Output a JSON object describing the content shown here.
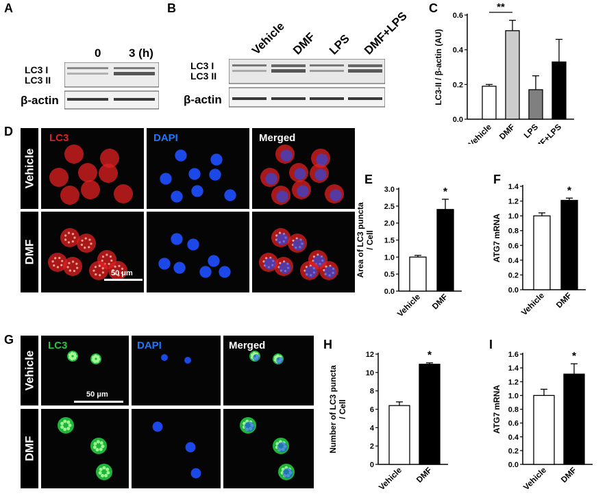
{
  "panels": {
    "A": "A",
    "B": "B",
    "C": "C",
    "D": "D",
    "E": "E",
    "F": "F",
    "G": "G",
    "H": "H",
    "I": "I"
  },
  "blot_a": {
    "lanes": [
      "0",
      "3 (h)"
    ],
    "labels": [
      "LC3 I",
      "LC3 II",
      "β-actin"
    ]
  },
  "blot_b": {
    "lanes": [
      "Vehicle",
      "DMF",
      "LPS",
      "DMF+LPS"
    ],
    "labels": [
      "LC3 I",
      "LC3 II",
      "β-actin"
    ]
  },
  "micro_d": {
    "channels": [
      "LC3",
      "DAPI",
      "Merged"
    ],
    "rows": [
      "Vehicle",
      "DMF"
    ],
    "scale": "50 μm",
    "colors": {
      "lc3": "#e02020",
      "dapi": "#1e50ff"
    }
  },
  "micro_g": {
    "channels": [
      "LC3",
      "DAPI",
      "Merged"
    ],
    "rows": [
      "Vehicle",
      "DMF"
    ],
    "scale": "50 μm",
    "colors": {
      "lc3": "#22c840",
      "dapi": "#1e50ff"
    }
  },
  "chart_data": [
    {
      "panel": "C",
      "type": "bar",
      "categories": [
        "Vehicle",
        "DMF",
        "LPS",
        "DMF+LPS"
      ],
      "values": [
        0.19,
        0.51,
        0.17,
        0.33
      ],
      "errors": [
        0.01,
        0.06,
        0.08,
        0.13
      ],
      "fills": [
        "#ffffff",
        "#cccccc",
        "#808080",
        "#000000"
      ],
      "ylabel": "LC3-II / β-actin (AU)",
      "ylim": [
        0,
        0.6
      ],
      "yticks": [
        "0.0",
        "0.2",
        "0.4",
        "0.6"
      ],
      "significance": [
        {
          "from": 0,
          "to": 1,
          "label": "**"
        }
      ]
    },
    {
      "panel": "E",
      "type": "bar",
      "categories": [
        "Vehicle",
        "DMF"
      ],
      "values": [
        1.0,
        2.4
      ],
      "errors": [
        0.05,
        0.3
      ],
      "fills": [
        "#ffffff",
        "#000000"
      ],
      "ylabel": "Area of LC3 puncta / Cell",
      "ylim": [
        0,
        3.0
      ],
      "yticks": [
        "0.0",
        "0.5",
        "1.0",
        "1.5",
        "2.0",
        "2.5",
        "3.0"
      ],
      "star": "*"
    },
    {
      "panel": "F",
      "type": "bar",
      "categories": [
        "Vehicle",
        "DMF"
      ],
      "values": [
        1.0,
        1.21
      ],
      "errors": [
        0.04,
        0.03
      ],
      "fills": [
        "#ffffff",
        "#000000"
      ],
      "ylabel": "ATG7 mRNA",
      "ylim": [
        0,
        1.4
      ],
      "yticks": [
        "0.0",
        "0.2",
        "0.4",
        "0.6",
        "0.8",
        "1.0",
        "1.2",
        "1.4"
      ],
      "star": "*"
    },
    {
      "panel": "H",
      "type": "bar",
      "categories": [
        "Vehicle",
        "DMF"
      ],
      "values": [
        6.4,
        10.9
      ],
      "errors": [
        0.4,
        0.15
      ],
      "fills": [
        "#ffffff",
        "#000000"
      ],
      "ylabel": "Number of LC3 puncta / Cell",
      "ylim": [
        0,
        12
      ],
      "yticks": [
        "0",
        "2",
        "4",
        "6",
        "8",
        "10",
        "12"
      ],
      "star": "*"
    },
    {
      "panel": "I",
      "type": "bar",
      "categories": [
        "Vehicle",
        "DMF"
      ],
      "values": [
        1.0,
        1.31
      ],
      "errors": [
        0.09,
        0.15
      ],
      "fills": [
        "#ffffff",
        "#000000"
      ],
      "ylabel": "ATG7 mRNA",
      "ylim": [
        0,
        1.6
      ],
      "yticks": [
        "0.0",
        "0.2",
        "0.4",
        "0.6",
        "0.8",
        "1.0",
        "1.2",
        "1.4",
        "1.6"
      ],
      "star": "*"
    }
  ]
}
